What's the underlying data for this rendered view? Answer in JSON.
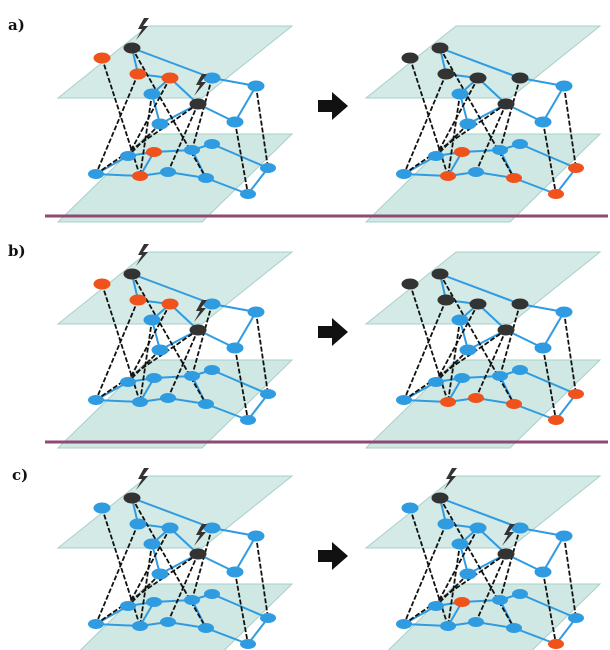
{
  "panels": [
    {
      "label": "a)",
      "before": {
        "failed": [
          1,
          6
        ],
        "damaged_top": [
          0,
          2,
          3
        ],
        "damaged_bottom": [
          2,
          3
        ]
      },
      "after": {
        "failed": [
          0,
          1,
          2,
          3,
          5,
          6
        ],
        "damaged_top": [],
        "damaged_bottom": [
          2,
          3,
          5,
          7,
          8
        ]
      }
    },
    {
      "label": "b)",
      "before": {
        "failed": [
          1,
          6
        ],
        "damaged_top": [
          0,
          2,
          3
        ],
        "damaged_bottom": []
      },
      "after": {
        "failed": [
          0,
          1,
          2,
          3,
          5,
          6
        ],
        "damaged_top": [],
        "damaged_bottom": [
          2,
          4,
          5,
          7,
          8
        ]
      }
    },
    {
      "label": "c)",
      "before": {
        "failed": [
          1,
          6
        ],
        "damaged_top": [],
        "damaged_bottom": []
      },
      "after": {
        "failed": [
          1,
          6
        ],
        "damaged_top": [],
        "damaged_bottom": [
          3,
          7
        ]
      }
    }
  ],
  "colors": {
    "plane_fill": "#cfe8e4",
    "plane_stroke": "#a9cfc9",
    "node_normal": "#2f9be0",
    "node_damaged": "#f0521c",
    "node_failed": "#333333",
    "edge_intra": "#2f9be0",
    "edge_inter": "#111111",
    "arrow": "#111111",
    "separator": "#8e4a72"
  },
  "icons": {
    "failure_marker": "lightning-bolt-icon",
    "transition": "right-arrow-icon"
  }
}
